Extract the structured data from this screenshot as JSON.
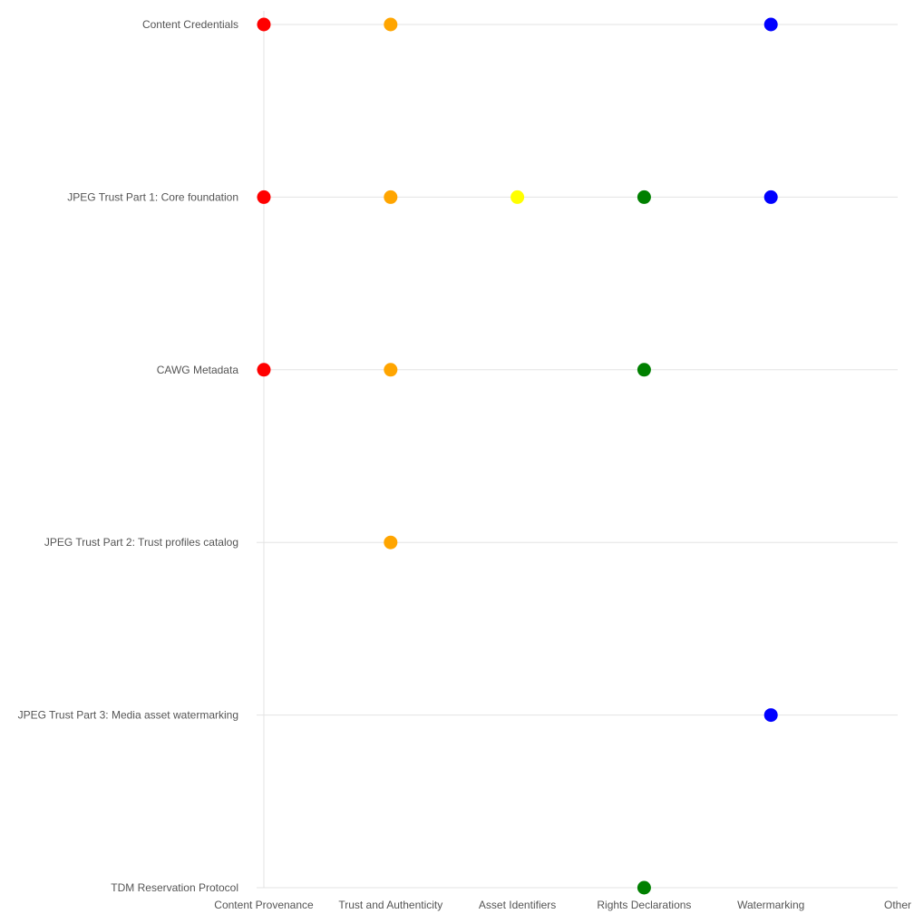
{
  "chart_data": {
    "type": "scatter",
    "title": "",
    "xlabel": "",
    "ylabel": "",
    "grid": true,
    "legend": "none",
    "categories_x": [
      "Content Provenance",
      "Trust and Authenticity",
      "Asset Identifiers",
      "Rights Declarations",
      "Watermarking",
      "Other"
    ],
    "categories_y": [
      "Content Credentials",
      "JPEG Trust Part 1: Core foundation",
      "CAWG Metadata",
      "JPEG Trust Part 2: Trust profiles catalog",
      "JPEG Trust Part 3: Media asset watermarking",
      "TDM Reservation Protocol"
    ],
    "category_colors": {
      "Content Provenance": "#ff0000",
      "Trust and Authenticity": "#ffa500",
      "Asset Identifiers": "#ffff00",
      "Rights Declarations": "#008000",
      "Watermarking": "#0000ff",
      "Other": "#888888"
    },
    "points": [
      {
        "y": "Content Credentials",
        "x": "Content Provenance"
      },
      {
        "y": "Content Credentials",
        "x": "Trust and Authenticity"
      },
      {
        "y": "Content Credentials",
        "x": "Watermarking"
      },
      {
        "y": "JPEG Trust Part 1: Core foundation",
        "x": "Content Provenance"
      },
      {
        "y": "JPEG Trust Part 1: Core foundation",
        "x": "Trust and Authenticity"
      },
      {
        "y": "JPEG Trust Part 1: Core foundation",
        "x": "Asset Identifiers"
      },
      {
        "y": "JPEG Trust Part 1: Core foundation",
        "x": "Rights Declarations"
      },
      {
        "y": "JPEG Trust Part 1: Core foundation",
        "x": "Watermarking"
      },
      {
        "y": "CAWG Metadata",
        "x": "Content Provenance"
      },
      {
        "y": "CAWG Metadata",
        "x": "Trust and Authenticity"
      },
      {
        "y": "CAWG Metadata",
        "x": "Rights Declarations"
      },
      {
        "y": "JPEG Trust Part 2: Trust profiles catalog",
        "x": "Trust and Authenticity"
      },
      {
        "y": "JPEG Trust Part 3: Media asset watermarking",
        "x": "Watermarking"
      },
      {
        "y": "TDM Reservation Protocol",
        "x": "Rights Declarations"
      }
    ]
  }
}
